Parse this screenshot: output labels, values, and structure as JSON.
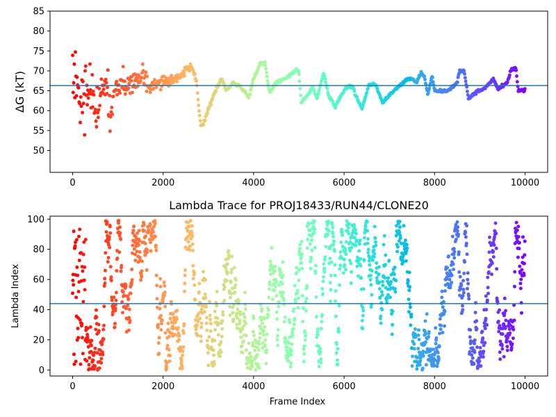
{
  "colors": {
    "mean_line": "#1f77b4",
    "colormap": "rainbow"
  },
  "chart_data": [
    {
      "type": "scatter",
      "title": "",
      "xlabel": "",
      "ylabel": "ΔG (kT)",
      "xlim": [
        -500,
        10500
      ],
      "ylim": [
        44.5,
        85
      ],
      "xticks": [
        0,
        2000,
        4000,
        6000,
        8000,
        10000
      ],
      "xtick_labels": [
        "0",
        "2000",
        "4000",
        "6000",
        "8000",
        "10000"
      ],
      "yticks": [
        50,
        55,
        60,
        65,
        70,
        75,
        80,
        85
      ],
      "ytick_labels": [
        "50",
        "55",
        "60",
        "65",
        "70",
        "75",
        "80",
        "85"
      ],
      "color_encoding": "rainbow colormap by frame index (red at 0, violet at 10000)",
      "mean_line": 66.3,
      "anchors": [
        [
          0,
          66,
          15
        ],
        [
          120,
          65,
          10
        ],
        [
          250,
          66,
          9
        ],
        [
          400,
          65,
          7
        ],
        [
          550,
          62,
          6
        ],
        [
          650,
          64,
          5
        ],
        [
          780,
          66,
          4
        ],
        [
          840,
          53,
          6
        ],
        [
          900,
          66,
          3
        ],
        [
          1050,
          67,
          3
        ],
        [
          1200,
          66,
          3
        ],
        [
          1400,
          68,
          3
        ],
        [
          1550,
          69,
          3
        ],
        [
          1700,
          66,
          2
        ],
        [
          1900,
          67,
          1.5
        ],
        [
          2100,
          67.5,
          1.2
        ],
        [
          2300,
          68,
          1
        ],
        [
          2500,
          70,
          1
        ],
        [
          2650,
          71,
          0.8
        ],
        [
          2750,
          66,
          0.6
        ],
        [
          2830,
          56,
          0.4
        ],
        [
          2900,
          57,
          0.5
        ],
        [
          3050,
          62,
          0.5
        ],
        [
          3200,
          66,
          0.4
        ],
        [
          3300,
          68,
          0.3
        ],
        [
          3400,
          65,
          0.3
        ],
        [
          3550,
          67,
          0.3
        ],
        [
          3700,
          66,
          0.3
        ],
        [
          3900,
          63.5,
          0.3
        ],
        [
          4000,
          68,
          0.3
        ],
        [
          4150,
          72,
          0.3
        ],
        [
          4250,
          72,
          0.3
        ],
        [
          4350,
          64.5,
          0.3
        ],
        [
          4500,
          67,
          0.3
        ],
        [
          4700,
          68,
          0.3
        ],
        [
          4900,
          70,
          0.3
        ],
        [
          5000,
          70,
          0.3
        ],
        [
          5050,
          62,
          0.3
        ],
        [
          5200,
          64,
          0.3
        ],
        [
          5300,
          66,
          0.3
        ],
        [
          5400,
          63,
          0.3
        ],
        [
          5550,
          69.5,
          0.3
        ],
        [
          5650,
          64,
          0.3
        ],
        [
          5800,
          61,
          0.3
        ],
        [
          5950,
          64,
          0.3
        ],
        [
          6050,
          66,
          0.3
        ],
        [
          6200,
          66,
          0.3
        ],
        [
          6250,
          64,
          0.3
        ],
        [
          6400,
          60.5,
          0.3
        ],
        [
          6550,
          66.5,
          0.3
        ],
        [
          6700,
          66.5,
          0.3
        ],
        [
          6850,
          62,
          0.3
        ],
        [
          7000,
          64,
          0.3
        ],
        [
          7200,
          66,
          0.3
        ],
        [
          7400,
          68,
          0.3
        ],
        [
          7500,
          68,
          0.3
        ],
        [
          7600,
          67,
          0.3
        ],
        [
          7700,
          69.5,
          0.3
        ],
        [
          7780,
          68.5,
          0.3
        ],
        [
          7850,
          64,
          0.3
        ],
        [
          7950,
          69,
          0.3
        ],
        [
          8000,
          65,
          0.3
        ],
        [
          8300,
          65,
          0.3
        ],
        [
          8500,
          67,
          0.3
        ],
        [
          8550,
          70,
          0.3
        ],
        [
          8650,
          70,
          0.3
        ],
        [
          8750,
          63,
          0.3
        ],
        [
          8900,
          64.5,
          0.3
        ],
        [
          9100,
          65.5,
          0.3
        ],
        [
          9300,
          68,
          0.3
        ],
        [
          9400,
          65.5,
          0.3
        ],
        [
          9600,
          67,
          0.3
        ],
        [
          9700,
          70.5,
          0.3
        ],
        [
          9800,
          70.5,
          0.3
        ],
        [
          9850,
          65,
          0.3
        ],
        [
          10000,
          65,
          0.3
        ]
      ]
    },
    {
      "type": "scatter",
      "title": "Lambda Trace for PROJ18433/RUN44/CLONE20",
      "xlabel": "Frame Index",
      "ylabel": "Lambda Index",
      "xlim": [
        -500,
        10500
      ],
      "ylim": [
        -4,
        102
      ],
      "xticks": [
        0,
        2000,
        4000,
        6000,
        8000,
        10000
      ],
      "xtick_labels": [
        "0",
        "2000",
        "4000",
        "6000",
        "8000",
        "10000"
      ],
      "yticks": [
        0,
        20,
        40,
        60,
        80,
        100
      ],
      "ytick_labels": [
        "0",
        "20",
        "40",
        "60",
        "80",
        "100"
      ],
      "color_encoding": "rainbow colormap by frame index (red at 0, violet at 10000)",
      "mean_line": 44,
      "value_range": [
        0,
        99
      ],
      "frame_range": [
        0,
        10000
      ]
    }
  ]
}
